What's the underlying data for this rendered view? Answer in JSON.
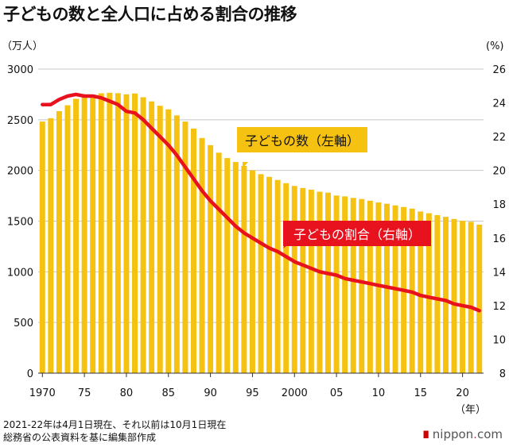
{
  "title": "子どもの数と全人口に占める割合の推移",
  "chart_data": {
    "type": "bar+line",
    "title": "子どもの数と全人口に占める割合の推移",
    "left_axis_unit": "（万人）",
    "right_axis_unit": "(%)",
    "x_unit": "（年）",
    "left_ylim": [
      0,
      3000
    ],
    "left_ticks": [
      "3000",
      "2500",
      "2000",
      "1500",
      "1000",
      "500",
      "0"
    ],
    "right_ylim": [
      8,
      26
    ],
    "right_ticks": [
      "26",
      "24",
      "22",
      "20",
      "18",
      "16",
      "14",
      "12",
      "10",
      "8"
    ],
    "x_tick_labels": [
      "1970",
      "75",
      "80",
      "85",
      "90",
      "95",
      "2000",
      "05",
      "10",
      "15",
      "20"
    ],
    "grid": true,
    "years": [
      1970,
      1971,
      1972,
      1973,
      1974,
      1975,
      1976,
      1977,
      1978,
      1979,
      1980,
      1981,
      1982,
      1983,
      1984,
      1985,
      1986,
      1987,
      1988,
      1989,
      1990,
      1991,
      1992,
      1993,
      1994,
      1995,
      1996,
      1997,
      1998,
      1999,
      2000,
      2001,
      2002,
      2003,
      2004,
      2005,
      2006,
      2007,
      2008,
      2009,
      2010,
      2011,
      2012,
      2013,
      2014,
      2015,
      2016,
      2017,
      2018,
      2019,
      2020,
      2021,
      2022
    ],
    "series": [
      {
        "name": "子どもの数（左軸）",
        "kind": "bar",
        "axis": "left",
        "color": "#f5c211",
        "values": [
          2482,
          2515,
          2585,
          2643,
          2706,
          2722,
          2747,
          2761,
          2766,
          2762,
          2751,
          2759,
          2722,
          2681,
          2638,
          2603,
          2543,
          2482,
          2413,
          2320,
          2249,
          2175,
          2122,
          2083,
          2045,
          2001,
          1963,
          1937,
          1906,
          1874,
          1847,
          1827,
          1810,
          1790,
          1781,
          1752,
          1744,
          1729,
          1718,
          1701,
          1684,
          1671,
          1655,
          1639,
          1623,
          1595,
          1578,
          1559,
          1542,
          1521,
          1503,
          1493,
          1465
        ]
      },
      {
        "name": "子どもの割合（右軸）",
        "kind": "line",
        "axis": "right",
        "color": "#e8121e",
        "values": [
          23.9,
          23.9,
          24.2,
          24.4,
          24.5,
          24.4,
          24.4,
          24.3,
          24.1,
          23.9,
          23.5,
          23.4,
          23.0,
          22.5,
          22.0,
          21.5,
          20.9,
          20.2,
          19.5,
          18.8,
          18.2,
          17.7,
          17.2,
          16.7,
          16.3,
          16.0,
          15.7,
          15.4,
          15.2,
          14.9,
          14.6,
          14.4,
          14.2,
          14.0,
          13.9,
          13.8,
          13.6,
          13.5,
          13.4,
          13.3,
          13.2,
          13.1,
          13.0,
          12.9,
          12.8,
          12.6,
          12.5,
          12.4,
          12.3,
          12.1,
          12.0,
          11.9,
          11.7
        ]
      }
    ],
    "annotations": [
      "子どもの数（左軸）",
      "子どもの割合（右軸）"
    ]
  },
  "notes": [
    "2021-22年は4月1日現在、それ以前は10月1日現在",
    "総務省の公表資料を基に編集部作成"
  ],
  "credit": {
    "brand": "nippon",
    "dot": ".",
    "tld": "com"
  },
  "colors": {
    "bar": "#f5c211",
    "line": "#e8121e",
    "grid": "#c8c8c8",
    "label_bg_bar": "#f5c211",
    "label_bg_line": "#e8121e"
  }
}
